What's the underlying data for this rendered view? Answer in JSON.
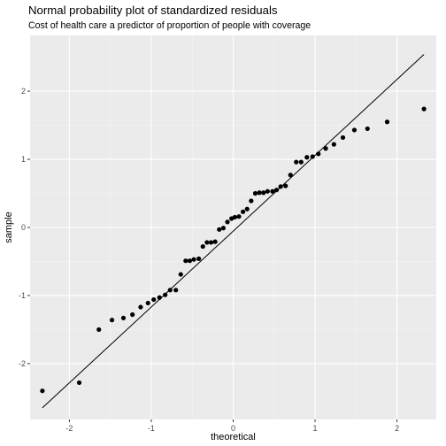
{
  "chart_data": {
    "type": "scatter",
    "title": "Normal probability plot of standardized residuals",
    "subtitle": "Cost of health care a predictor of proportion of people with coverage",
    "xlabel": "theoretical",
    "ylabel": "sample",
    "xlim": [
      -2.48,
      2.48
    ],
    "ylim": [
      -2.82,
      2.82
    ],
    "x_ticks": [
      -2,
      -1,
      0,
      1,
      2
    ],
    "x_tick_labels": [
      "-2",
      "-1",
      "0",
      "1",
      "2"
    ],
    "y_ticks": [
      -2,
      -1,
      0,
      1,
      2
    ],
    "y_tick_labels": [
      "-2",
      "-1",
      "0",
      "1",
      "2"
    ],
    "grid": true,
    "reference_line": {
      "x": [
        -2.33,
        2.33
      ],
      "y": [
        -2.65,
        2.54
      ]
    },
    "points": [
      {
        "x": -2.33,
        "y": -2.4
      },
      {
        "x": -1.88,
        "y": -2.28
      },
      {
        "x": -1.64,
        "y": -1.5
      },
      {
        "x": -1.48,
        "y": -1.36
      },
      {
        "x": -1.34,
        "y": -1.33
      },
      {
        "x": -1.23,
        "y": -1.28
      },
      {
        "x": -1.13,
        "y": -1.17
      },
      {
        "x": -1.04,
        "y": -1.11
      },
      {
        "x": -0.97,
        "y": -1.06
      },
      {
        "x": -0.9,
        "y": -1.03
      },
      {
        "x": -0.83,
        "y": -0.99
      },
      {
        "x": -0.77,
        "y": -0.92
      },
      {
        "x": -0.7,
        "y": -0.92
      },
      {
        "x": -0.64,
        "y": -0.69
      },
      {
        "x": -0.58,
        "y": -0.49
      },
      {
        "x": -0.53,
        "y": -0.49
      },
      {
        "x": -0.48,
        "y": -0.47
      },
      {
        "x": -0.42,
        "y": -0.46
      },
      {
        "x": -0.37,
        "y": -0.28
      },
      {
        "x": -0.32,
        "y": -0.22
      },
      {
        "x": -0.27,
        "y": -0.22
      },
      {
        "x": -0.22,
        "y": -0.21
      },
      {
        "x": -0.17,
        "y": -0.03
      },
      {
        "x": -0.12,
        "y": -0.01
      },
      {
        "x": -0.07,
        "y": 0.08
      },
      {
        "x": -0.02,
        "y": 0.13
      },
      {
        "x": 0.02,
        "y": 0.15
      },
      {
        "x": 0.07,
        "y": 0.16
      },
      {
        "x": 0.12,
        "y": 0.23
      },
      {
        "x": 0.17,
        "y": 0.27
      },
      {
        "x": 0.22,
        "y": 0.39
      },
      {
        "x": 0.27,
        "y": 0.5
      },
      {
        "x": 0.32,
        "y": 0.51
      },
      {
        "x": 0.37,
        "y": 0.51
      },
      {
        "x": 0.42,
        "y": 0.53
      },
      {
        "x": 0.48,
        "y": 0.53
      },
      {
        "x": 0.53,
        "y": 0.55
      },
      {
        "x": 0.58,
        "y": 0.6
      },
      {
        "x": 0.64,
        "y": 0.61
      },
      {
        "x": 0.7,
        "y": 0.77
      },
      {
        "x": 0.77,
        "y": 0.96
      },
      {
        "x": 0.83,
        "y": 0.96
      },
      {
        "x": 0.9,
        "y": 1.03
      },
      {
        "x": 0.97,
        "y": 1.04
      },
      {
        "x": 1.04,
        "y": 1.08
      },
      {
        "x": 1.13,
        "y": 1.16
      },
      {
        "x": 1.23,
        "y": 1.22
      },
      {
        "x": 1.34,
        "y": 1.32
      },
      {
        "x": 1.48,
        "y": 1.43
      },
      {
        "x": 1.64,
        "y": 1.45
      },
      {
        "x": 1.88,
        "y": 1.55
      },
      {
        "x": 2.33,
        "y": 1.74
      }
    ],
    "colors": {
      "panel_background": "#ebebeb",
      "major_grid": "#ffffff",
      "minor_grid": "#f5f5f5",
      "points": "#000000",
      "reference_line": "#000000"
    }
  }
}
